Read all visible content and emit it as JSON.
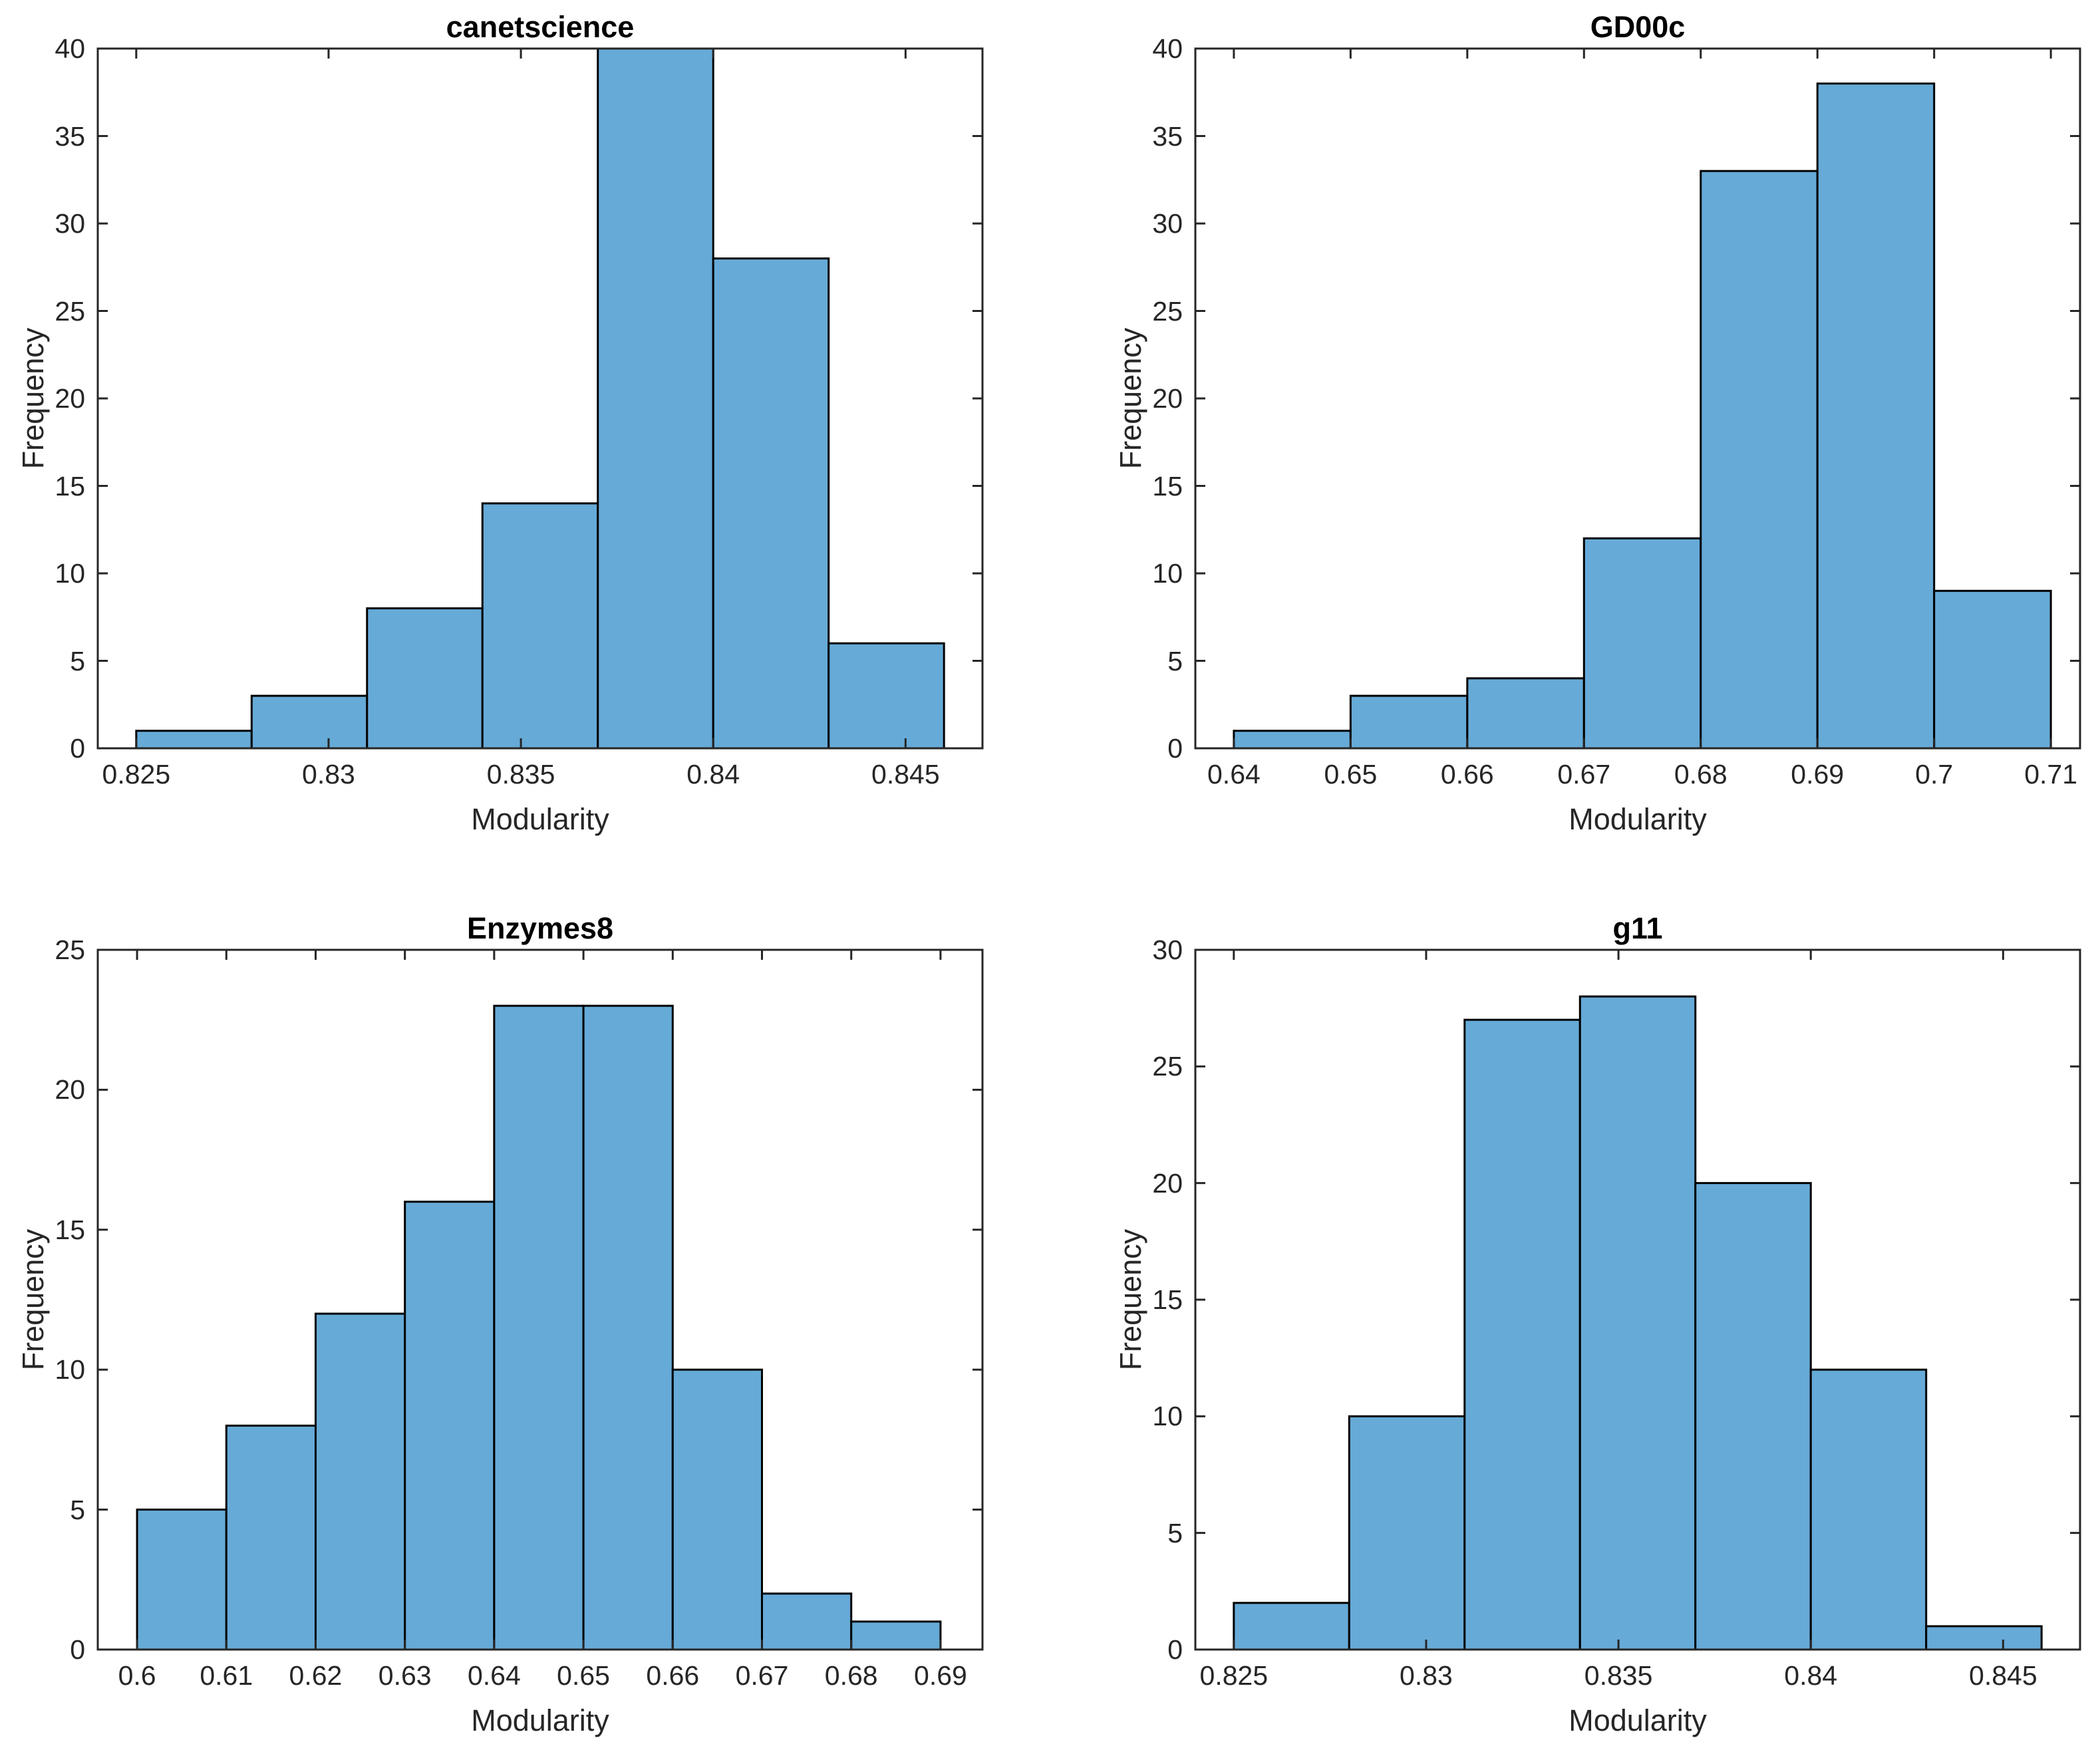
{
  "figure": {
    "background": "#ffffff",
    "bar_fill": "#66AAD7",
    "bar_edge": "#000000",
    "axis_color": "#262626",
    "tick_label_color": "#262626",
    "title_color": "#000000"
  },
  "chart_data": [
    {
      "type": "bar",
      "title": "canetscience",
      "xlabel": "Modularity",
      "ylabel": "Frequency",
      "bin_edges": [
        0.825,
        0.828,
        0.831,
        0.834,
        0.837,
        0.84,
        0.843,
        0.846
      ],
      "values": [
        1,
        3,
        8,
        14,
        40,
        28,
        6
      ],
      "xlim": [
        0.824,
        0.847
      ],
      "ylim": [
        0,
        40
      ],
      "xticks": [
        0.825,
        0.83,
        0.835,
        0.84,
        0.845
      ],
      "xtick_labels": [
        "0.825",
        "0.83",
        "0.835",
        "0.84",
        "0.845"
      ],
      "yticks": [
        0,
        5,
        10,
        15,
        20,
        25,
        30,
        35,
        40
      ],
      "ytick_labels": [
        "0",
        "5",
        "10",
        "15",
        "20",
        "25",
        "30",
        "35",
        "40"
      ],
      "grid": false,
      "legend": null
    },
    {
      "type": "bar",
      "title": "GD00c",
      "xlabel": "Modularity",
      "ylabel": "Frequency",
      "bin_edges": [
        0.64,
        0.65,
        0.66,
        0.67,
        0.68,
        0.69,
        0.7,
        0.71
      ],
      "values": [
        1,
        3,
        4,
        12,
        33,
        38,
        9
      ],
      "xlim": [
        0.6367,
        0.7125
      ],
      "ylim": [
        0,
        40
      ],
      "xticks": [
        0.64,
        0.65,
        0.66,
        0.67,
        0.68,
        0.69,
        0.7,
        0.71
      ],
      "xtick_labels": [
        "0.64",
        "0.65",
        "0.66",
        "0.67",
        "0.68",
        "0.69",
        "0.7",
        "0.71"
      ],
      "yticks": [
        0,
        5,
        10,
        15,
        20,
        25,
        30,
        35,
        40
      ],
      "ytick_labels": [
        "0",
        "5",
        "10",
        "15",
        "20",
        "25",
        "30",
        "35",
        "40"
      ],
      "grid": false,
      "legend": null
    },
    {
      "type": "bar",
      "title": "Enzymes8",
      "xlabel": "Modularity",
      "ylabel": "Frequency",
      "bin_edges": [
        0.6,
        0.61,
        0.62,
        0.63,
        0.64,
        0.65,
        0.66,
        0.67,
        0.68,
        0.69
      ],
      "values": [
        5,
        8,
        12,
        16,
        23,
        23,
        10,
        2,
        1
      ],
      "xlim": [
        0.5956,
        0.6947
      ],
      "ylim": [
        0,
        25
      ],
      "xticks": [
        0.6,
        0.61,
        0.62,
        0.63,
        0.64,
        0.65,
        0.66,
        0.67,
        0.68,
        0.69
      ],
      "xtick_labels": [
        "0.6",
        "0.61",
        "0.62",
        "0.63",
        "0.64",
        "0.65",
        "0.66",
        "0.67",
        "0.68",
        "0.69"
      ],
      "yticks": [
        0,
        5,
        10,
        15,
        20,
        25
      ],
      "ytick_labels": [
        "0",
        "5",
        "10",
        "15",
        "20",
        "25"
      ],
      "grid": false,
      "legend": null
    },
    {
      "type": "bar",
      "title": "g11",
      "xlabel": "Modularity",
      "ylabel": "Frequency",
      "bin_edges": [
        0.825,
        0.828,
        0.831,
        0.834,
        0.837,
        0.84,
        0.843,
        0.846
      ],
      "values": [
        2,
        10,
        27,
        28,
        20,
        12,
        1
      ],
      "xlim": [
        0.824,
        0.847
      ],
      "ylim": [
        0,
        30
      ],
      "xticks": [
        0.825,
        0.83,
        0.835,
        0.84,
        0.845
      ],
      "xtick_labels": [
        "0.825",
        "0.83",
        "0.835",
        "0.84",
        "0.845"
      ],
      "yticks": [
        0,
        5,
        10,
        15,
        20,
        25,
        30
      ],
      "ytick_labels": [
        "0",
        "5",
        "10",
        "15",
        "20",
        "25",
        "30"
      ],
      "grid": false,
      "legend": null
    }
  ]
}
